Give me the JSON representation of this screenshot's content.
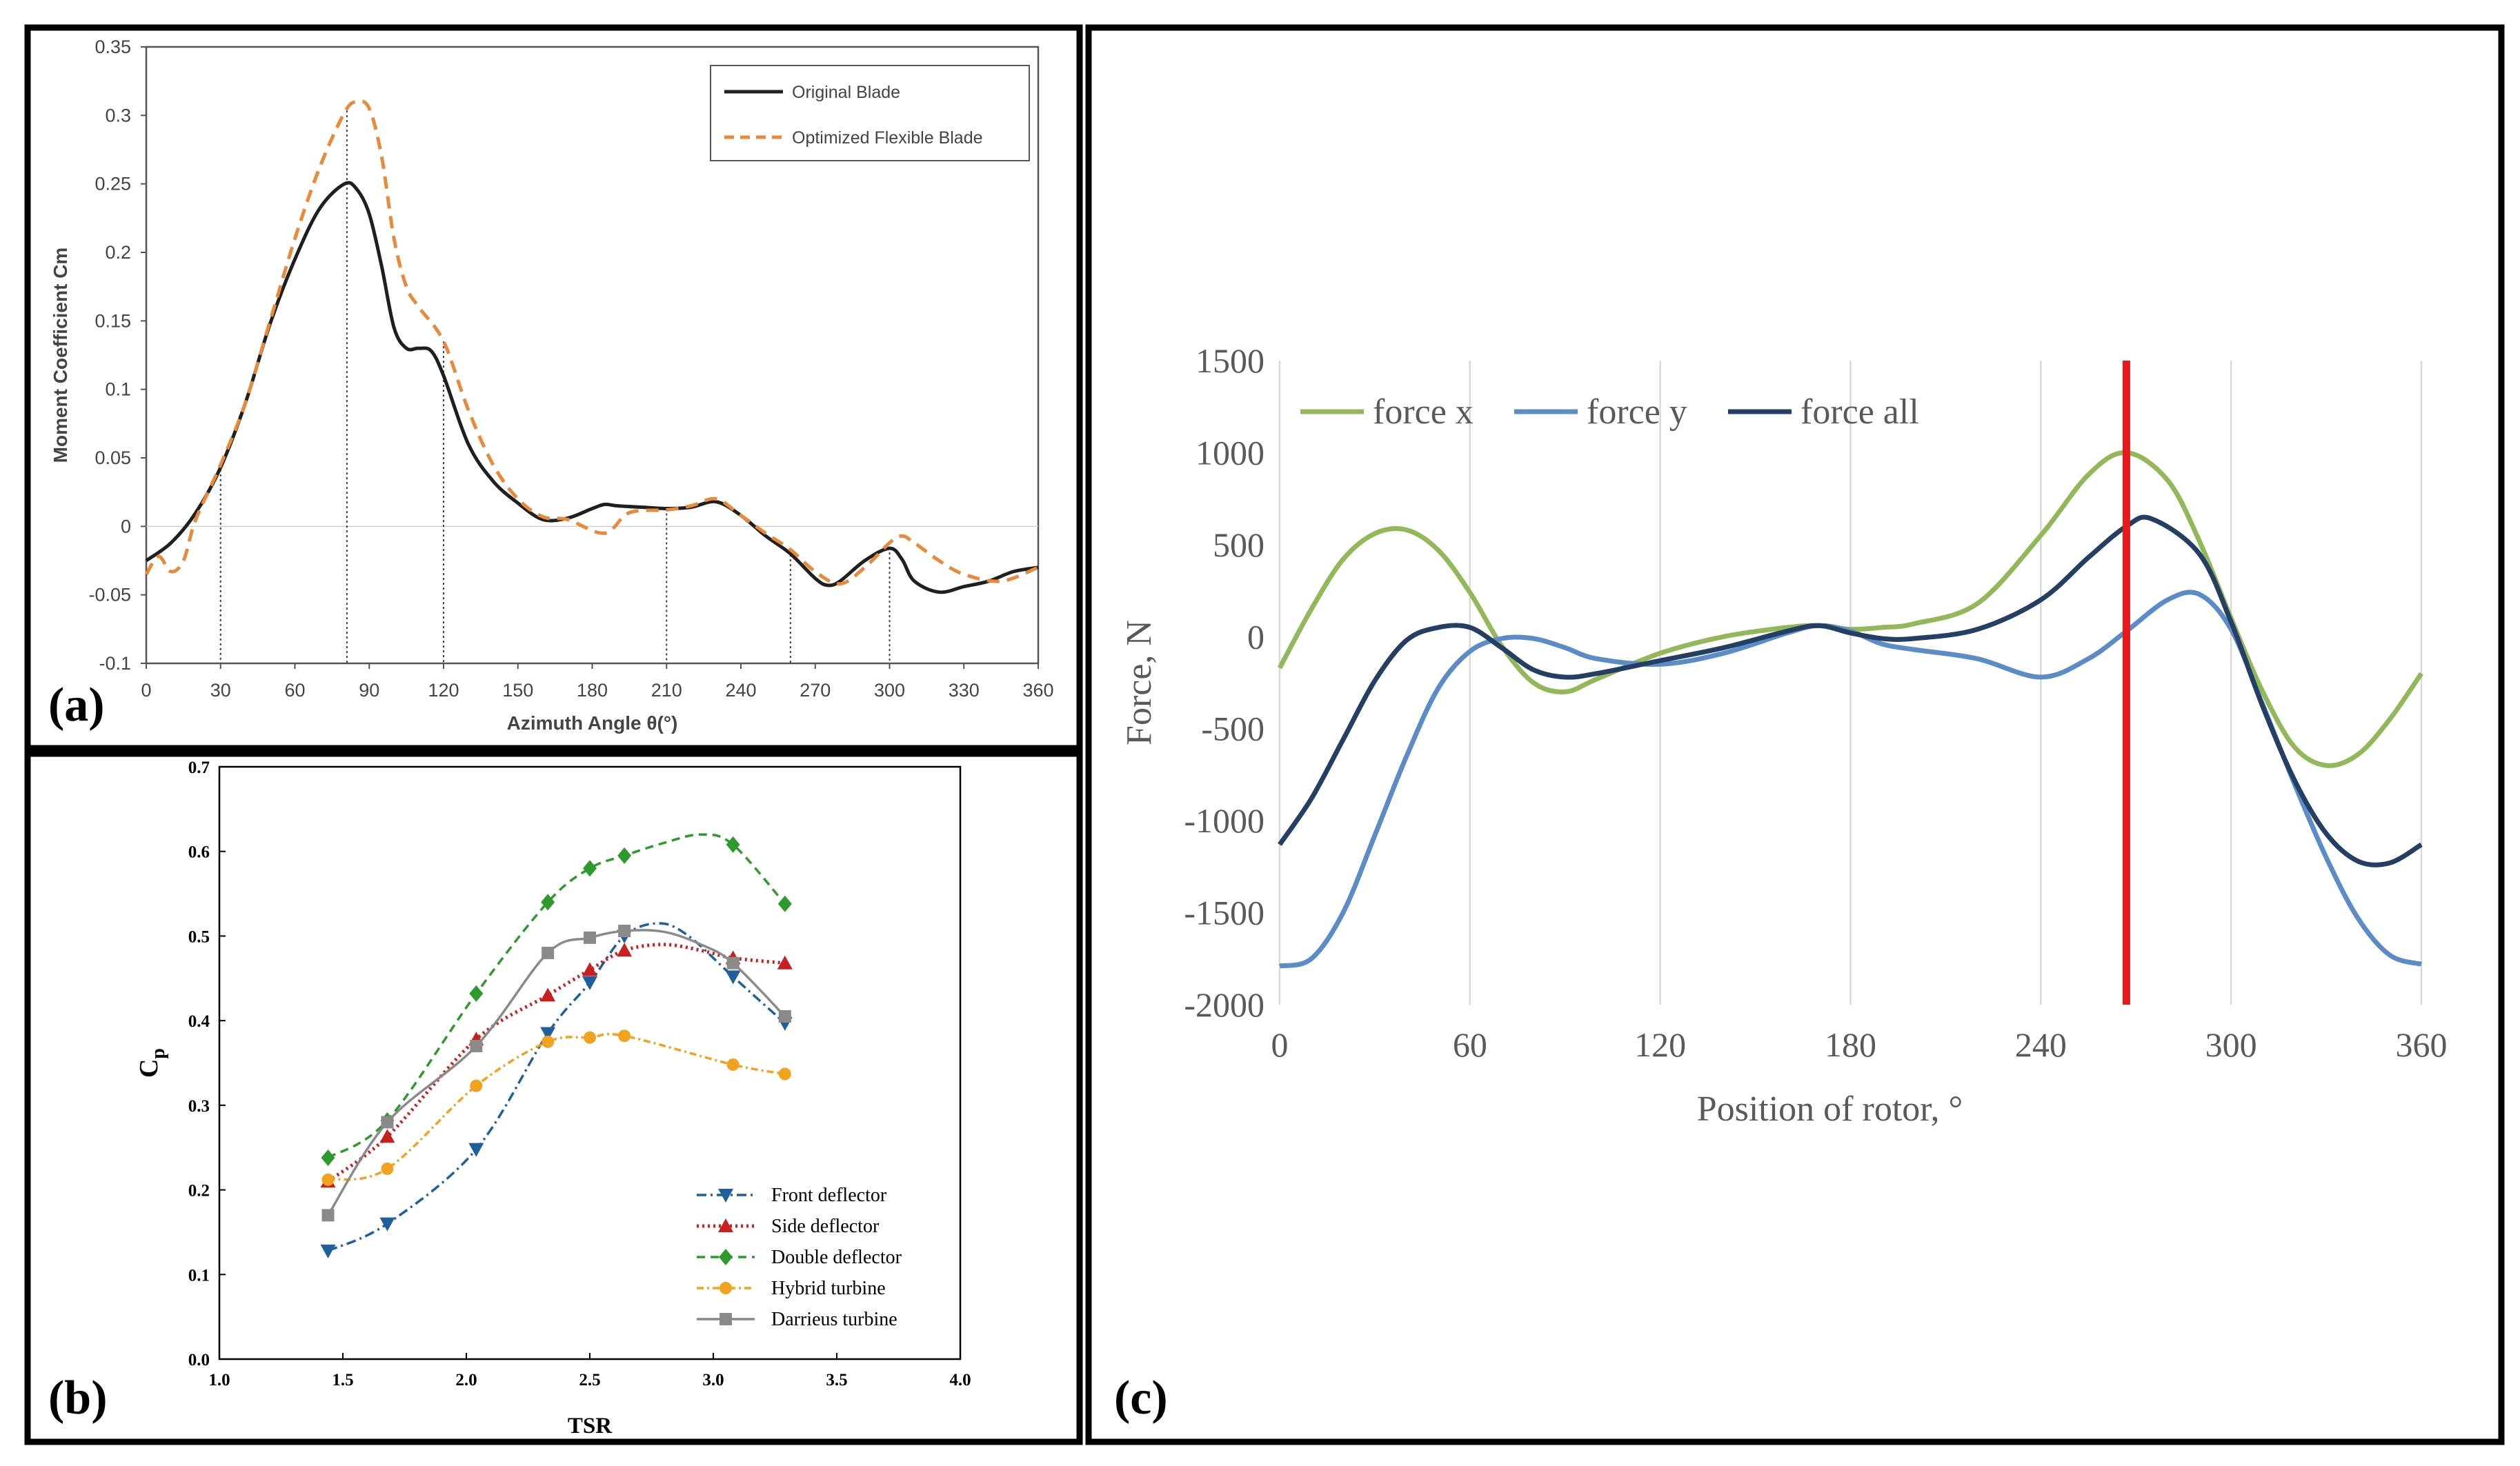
{
  "panels": {
    "a": {
      "label": "(a)"
    },
    "b": {
      "label": "(b)"
    },
    "c": {
      "label": "(c)"
    }
  },
  "chart_data": [
    {
      "id": "a",
      "type": "line",
      "title": "",
      "xlabel": "Azimuth Angle θ(°)",
      "ylabel": "Moment Coefficient Cm",
      "xlim": [
        0,
        360
      ],
      "ylim": [
        -0.1,
        0.35
      ],
      "xticks": [
        0,
        30,
        60,
        90,
        120,
        150,
        180,
        210,
        240,
        270,
        300,
        330,
        360
      ],
      "yticks": [
        -0.1,
        -0.05,
        0,
        0.05,
        0.1,
        0.15,
        0.2,
        0.25,
        0.3,
        0.35
      ],
      "ytick_labels": [
        "-0.1",
        "-0.05",
        "0",
        "0.05",
        "0.1",
        "0.15",
        "0.2",
        "0.25",
        "0.3",
        "0.35"
      ],
      "grid": false,
      "reference_lines_x": [
        30,
        81,
        120,
        210,
        260,
        300
      ],
      "legend": "top-right",
      "series": [
        {
          "name": "Original Blade",
          "color": "#1f1f1f",
          "style": "solid",
          "x": [
            0,
            10,
            20,
            30,
            40,
            50,
            60,
            70,
            80,
            85,
            90,
            95,
            100,
            105,
            110,
            115,
            120,
            130,
            140,
            150,
            160,
            170,
            180,
            185,
            190,
            200,
            210,
            220,
            230,
            240,
            250,
            260,
            270,
            275,
            280,
            290,
            300,
            305,
            310,
            320,
            330,
            340,
            350,
            360
          ],
          "y": [
            -0.025,
            -0.012,
            0.01,
            0.043,
            0.09,
            0.148,
            0.195,
            0.232,
            0.25,
            0.246,
            0.228,
            0.19,
            0.145,
            0.13,
            0.13,
            0.128,
            0.11,
            0.06,
            0.033,
            0.017,
            0.005,
            0.006,
            0.013,
            0.016,
            0.015,
            0.014,
            0.013,
            0.014,
            0.018,
            0.008,
            -0.007,
            -0.02,
            -0.038,
            -0.043,
            -0.04,
            -0.025,
            -0.016,
            -0.024,
            -0.04,
            -0.048,
            -0.044,
            -0.04,
            -0.033,
            -0.03
          ]
        },
        {
          "name": "Optimized Flexible Blade",
          "color": "#e98a3a",
          "style": "dashed",
          "x": [
            0,
            5,
            10,
            15,
            20,
            30,
            40,
            50,
            60,
            70,
            80,
            85,
            90,
            95,
            100,
            105,
            110,
            120,
            130,
            140,
            150,
            160,
            170,
            185,
            195,
            210,
            220,
            230,
            240,
            250,
            260,
            270,
            280,
            290,
            300,
            305,
            310,
            320,
            330,
            345,
            360
          ],
          "y": [
            -0.035,
            -0.022,
            -0.033,
            -0.025,
            0.005,
            0.045,
            0.09,
            0.15,
            0.21,
            0.262,
            0.302,
            0.31,
            0.305,
            0.27,
            0.21,
            0.175,
            0.16,
            0.135,
            0.085,
            0.045,
            0.02,
            0.007,
            0.005,
            -0.005,
            0.01,
            0.012,
            0.015,
            0.02,
            0.008,
            -0.005,
            -0.017,
            -0.033,
            -0.042,
            -0.03,
            -0.012,
            -0.007,
            -0.012,
            -0.025,
            -0.035,
            -0.04,
            -0.03
          ]
        }
      ]
    },
    {
      "id": "b",
      "type": "line",
      "title": "",
      "xlabel": "TSR",
      "ylabel": "Cp",
      "xlim": [
        1.0,
        4.0
      ],
      "ylim": [
        0.0,
        0.7
      ],
      "xticks": [
        1.0,
        1.5,
        2.0,
        2.5,
        3.0,
        3.5,
        4.0
      ],
      "xtick_labels": [
        "1.0",
        "1.5",
        "2.0",
        "2.5",
        "3.0",
        "3.5",
        "4.0"
      ],
      "yticks": [
        0.0,
        0.1,
        0.2,
        0.3,
        0.4,
        0.5,
        0.6,
        0.7
      ],
      "ytick_labels": [
        "0.0",
        "0.1",
        "0.2",
        "0.3",
        "0.4",
        "0.5",
        "0.6",
        "0.7"
      ],
      "grid": false,
      "legend": "bottom-right",
      "series": [
        {
          "name": "Front deflector",
          "color": "#1f5f9e",
          "marker": "triangle-down",
          "dash": "14,6,3,6",
          "x": [
            1.44,
            1.68,
            2.04,
            2.33,
            2.5,
            2.64,
            3.08,
            3.29
          ],
          "y": [
            0.128,
            0.16,
            0.248,
            0.385,
            0.445,
            0.5,
            0.452,
            0.397
          ],
          "curve_x": [
            1.44,
            1.68,
            2.04,
            2.33,
            2.5,
            2.64,
            2.78,
            2.9,
            3.08,
            3.29
          ],
          "curve_y": [
            0.128,
            0.16,
            0.248,
            0.385,
            0.445,
            0.5,
            0.515,
            0.5,
            0.452,
            0.397
          ]
        },
        {
          "name": "Side deflector",
          "color": "#c82020",
          "marker": "triangle-up",
          "dash": "3,5",
          "x": [
            1.44,
            1.68,
            2.04,
            2.33,
            2.5,
            2.64,
            3.08,
            3.29
          ],
          "y": [
            0.21,
            0.263,
            0.378,
            0.43,
            0.46,
            0.483,
            0.474,
            0.468
          ],
          "curve_x": [
            1.44,
            1.68,
            2.04,
            2.33,
            2.5,
            2.64,
            2.8,
            2.95,
            3.08,
            3.29
          ],
          "curve_y": [
            0.21,
            0.263,
            0.378,
            0.43,
            0.46,
            0.483,
            0.49,
            0.483,
            0.474,
            0.468
          ]
        },
        {
          "name": "Double deflector",
          "color": "#2e9a2e",
          "marker": "diamond",
          "dash": "12,8",
          "x": [
            1.44,
            1.68,
            2.04,
            2.33,
            2.5,
            2.64,
            3.08,
            3.29
          ],
          "y": [
            0.238,
            0.282,
            0.432,
            0.54,
            0.58,
            0.595,
            0.608,
            0.538
          ],
          "curve_x": [
            1.44,
            1.68,
            2.04,
            2.33,
            2.5,
            2.64,
            2.8,
            2.95,
            3.08,
            3.29
          ],
          "curve_y": [
            0.238,
            0.282,
            0.432,
            0.54,
            0.58,
            0.595,
            0.61,
            0.62,
            0.608,
            0.538
          ]
        },
        {
          "name": "Hybrid turbine",
          "color": "#f2a21e",
          "marker": "circle",
          "dash": "10,5,3,5",
          "x": [
            1.44,
            1.68,
            2.04,
            2.33,
            2.5,
            2.64,
            3.08,
            3.29
          ],
          "y": [
            0.212,
            0.225,
            0.323,
            0.375,
            0.38,
            0.382,
            0.348,
            0.337
          ],
          "curve_x": [
            1.44,
            1.68,
            2.04,
            2.33,
            2.5,
            2.64,
            3.08,
            3.29
          ],
          "curve_y": [
            0.212,
            0.225,
            0.323,
            0.375,
            0.38,
            0.382,
            0.348,
            0.337
          ]
        },
        {
          "name": "Darrieus turbine",
          "color": "#8a8a8a",
          "marker": "square",
          "dash": "",
          "x": [
            1.44,
            1.68,
            2.04,
            2.33,
            2.5,
            2.64,
            3.08,
            3.29
          ],
          "y": [
            0.17,
            0.28,
            0.37,
            0.48,
            0.498,
            0.506,
            0.468,
            0.405
          ],
          "curve_x": [
            1.44,
            1.68,
            2.04,
            2.33,
            2.5,
            2.64,
            2.8,
            2.95,
            3.08,
            3.29
          ],
          "curve_y": [
            0.17,
            0.28,
            0.37,
            0.48,
            0.498,
            0.506,
            0.505,
            0.49,
            0.468,
            0.405
          ]
        }
      ]
    },
    {
      "id": "c",
      "type": "line",
      "title": "",
      "xlabel": "Position of rotor, °",
      "ylabel": "Force, N",
      "xlim": [
        0,
        360
      ],
      "ylim": [
        -2000,
        1500
      ],
      "xticks": [
        0,
        60,
        120,
        180,
        240,
        300,
        360
      ],
      "yticks": [
        -2000,
        -1500,
        -1000,
        -500,
        0,
        500,
        1000,
        1500
      ],
      "grid": "vertical",
      "reference_line_x": 267,
      "reference_line_color": "#e8191c",
      "legend": "top-left",
      "series": [
        {
          "name": "force x",
          "color": "#93b85a",
          "x": [
            0,
            10,
            20,
            30,
            40,
            50,
            60,
            70,
            80,
            90,
            100,
            120,
            140,
            160,
            170,
            180,
            190,
            200,
            220,
            240,
            255,
            267,
            280,
            290,
            300,
            310,
            320,
            330,
            340,
            350,
            360
          ],
          "y": [
            -170,
            150,
            420,
            560,
            580,
            470,
            240,
            -50,
            -250,
            -300,
            -230,
            -90,
            0,
            50,
            60,
            40,
            50,
            70,
            180,
            550,
            880,
            1000,
            850,
            520,
            100,
            -300,
            -600,
            -700,
            -640,
            -450,
            -200
          ]
        },
        {
          "name": "force y",
          "color": "#5b8cc8",
          "x": [
            0,
            10,
            20,
            30,
            40,
            50,
            60,
            70,
            80,
            90,
            100,
            120,
            140,
            160,
            170,
            180,
            190,
            200,
            220,
            240,
            255,
            267,
            280,
            290,
            300,
            310,
            320,
            330,
            340,
            350,
            360
          ],
          "y": [
            -1790,
            -1750,
            -1500,
            -1080,
            -650,
            -280,
            -80,
            -10,
            -10,
            -60,
            -120,
            -150,
            -90,
            20,
            60,
            30,
            -40,
            -70,
            -120,
            -220,
            -120,
            30,
            200,
            230,
            40,
            -370,
            -800,
            -1200,
            -1530,
            -1730,
            -1780
          ]
        },
        {
          "name": "force all",
          "color": "#243f63",
          "x": [
            0,
            10,
            20,
            30,
            40,
            50,
            60,
            70,
            80,
            90,
            100,
            120,
            140,
            160,
            170,
            180,
            190,
            200,
            220,
            240,
            255,
            267,
            275,
            290,
            300,
            310,
            320,
            330,
            340,
            350,
            360
          ],
          "y": [
            -1130,
            -880,
            -560,
            -240,
            -20,
            50,
            50,
            -60,
            -180,
            -220,
            -200,
            -130,
            -60,
            30,
            60,
            20,
            -10,
            -10,
            40,
            200,
            430,
            600,
            640,
            450,
            80,
            -380,
            -780,
            -1070,
            -1220,
            -1230,
            -1130
          ]
        }
      ]
    }
  ]
}
